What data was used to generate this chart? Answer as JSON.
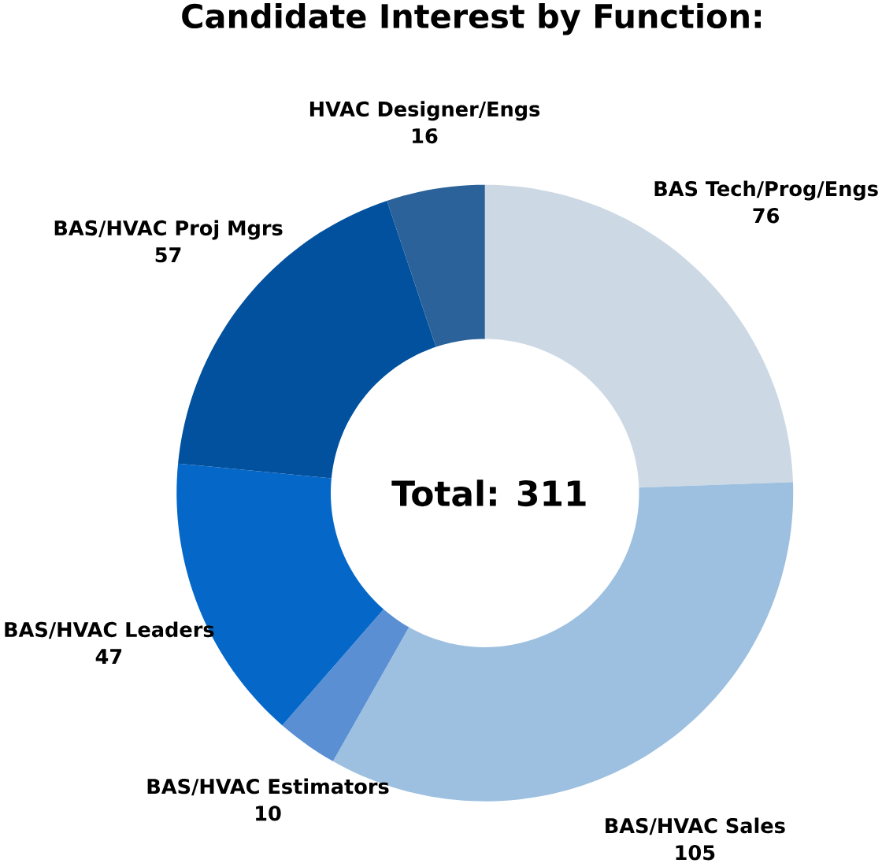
{
  "chart_data": {
    "type": "donut",
    "title": "Candidate Interest by Function:",
    "categories": [
      "BAS Tech/Prog/Engs",
      "BAS/HVAC Sales",
      "BAS/HVAC Estimators",
      "BAS/HVAC Leaders",
      "BAS/HVAC Proj Mgrs",
      "HVAC Designer/Engs"
    ],
    "values": [
      76,
      105,
      10,
      47,
      57,
      16
    ],
    "colors": [
      "#ccd9e4",
      "#9dc0e0",
      "#5a8fd4",
      "#0568c9",
      "#02519e",
      "#2a6299"
    ],
    "data_labels": true,
    "annotations": [
      "Total: 311"
    ]
  }
}
